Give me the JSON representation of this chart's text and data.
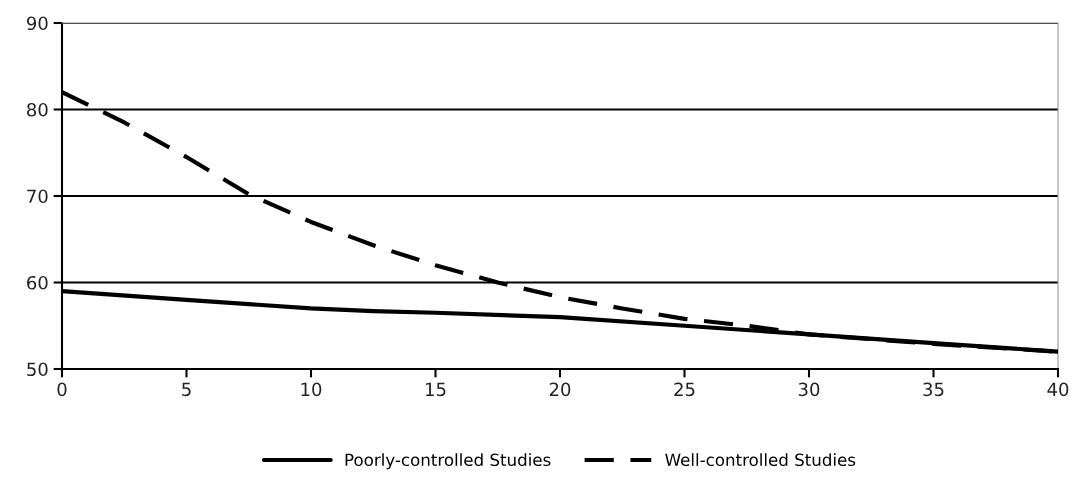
{
  "chart_data": {
    "type": "line",
    "xlim": [
      0,
      40
    ],
    "xticks": [
      0,
      5,
      10,
      15,
      20,
      25,
      30,
      35,
      40
    ],
    "ylim": [
      50,
      90
    ],
    "yticks": [
      50,
      60,
      70,
      80,
      90
    ],
    "grid": "y",
    "legend": "bottom",
    "marker": "none",
    "series": [
      {
        "name": "Poorly-controlled Studies",
        "color": "#000000",
        "line_style": "solid",
        "x": [
          0,
          5,
          10,
          12.5,
          15,
          20,
          25,
          30,
          35,
          40
        ],
        "values": [
          59,
          58,
          57,
          56.7,
          56.5,
          56,
          55,
          54,
          53,
          52
        ]
      },
      {
        "name": "Well-controlled Studies",
        "color": "#000000",
        "line_style": "dashed",
        "x": [
          0,
          2.5,
          5,
          7.5,
          10,
          12.5,
          15,
          17.5,
          20,
          22.5,
          25,
          27.5,
          30,
          35,
          40
        ],
        "values": [
          82,
          78.5,
          74.5,
          70.2,
          67,
          64.3,
          62,
          60,
          58.3,
          57,
          55.8,
          55,
          54,
          52.9,
          52
        ]
      }
    ]
  }
}
